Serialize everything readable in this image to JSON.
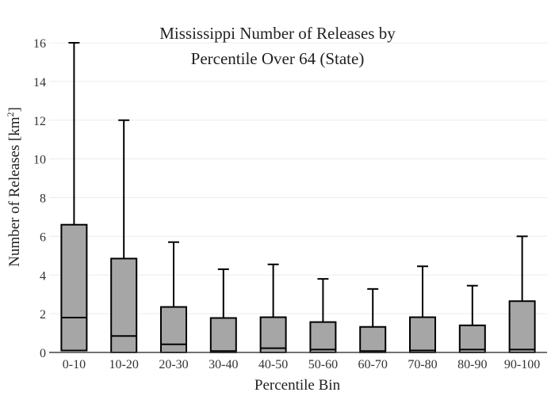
{
  "chart_data": {
    "type": "box",
    "title_line1": "Mississippi Number of Releases by",
    "title_line2": "Percentile Over 64 (State)",
    "xlabel": "Percentile Bin",
    "ylabel": "Number of Releases  [km",
    "ylabel_sup": "2",
    "ylabel_suffix": "]",
    "ylim": [
      0,
      16
    ],
    "yticks": [
      0,
      2,
      4,
      6,
      8,
      10,
      12,
      14,
      16
    ],
    "grid": "horizontal",
    "box_color": "#a6a6a6",
    "categories": [
      "0-10",
      "10-20",
      "20-30",
      "30-40",
      "40-50",
      "50-60",
      "60-70",
      "70-80",
      "80-90",
      "90-100"
    ],
    "boxes": [
      {
        "whisker_low": 0,
        "q1": 0.1,
        "median": 1.8,
        "q3": 6.6,
        "whisker_high": 16.0
      },
      {
        "whisker_low": 0,
        "q1": 0.0,
        "median": 0.85,
        "q3": 4.85,
        "whisker_high": 12.0
      },
      {
        "whisker_low": 0,
        "q1": 0.0,
        "median": 0.42,
        "q3": 2.35,
        "whisker_high": 5.7
      },
      {
        "whisker_low": 0,
        "q1": 0.0,
        "median": 0.07,
        "q3": 1.78,
        "whisker_high": 4.3
      },
      {
        "whisker_low": 0,
        "q1": 0.0,
        "median": 0.22,
        "q3": 1.82,
        "whisker_high": 4.55
      },
      {
        "whisker_low": 0,
        "q1": 0.0,
        "median": 0.15,
        "q3": 1.57,
        "whisker_high": 3.8
      },
      {
        "whisker_low": 0,
        "q1": 0.0,
        "median": 0.07,
        "q3": 1.32,
        "whisker_high": 3.28
      },
      {
        "whisker_low": 0,
        "q1": 0.0,
        "median": 0.1,
        "q3": 1.82,
        "whisker_high": 4.45
      },
      {
        "whisker_low": 0,
        "q1": 0.0,
        "median": 0.15,
        "q3": 1.4,
        "whisker_high": 3.45
      },
      {
        "whisker_low": 0,
        "q1": 0.0,
        "median": 0.15,
        "q3": 2.65,
        "whisker_high": 6.0
      }
    ]
  }
}
